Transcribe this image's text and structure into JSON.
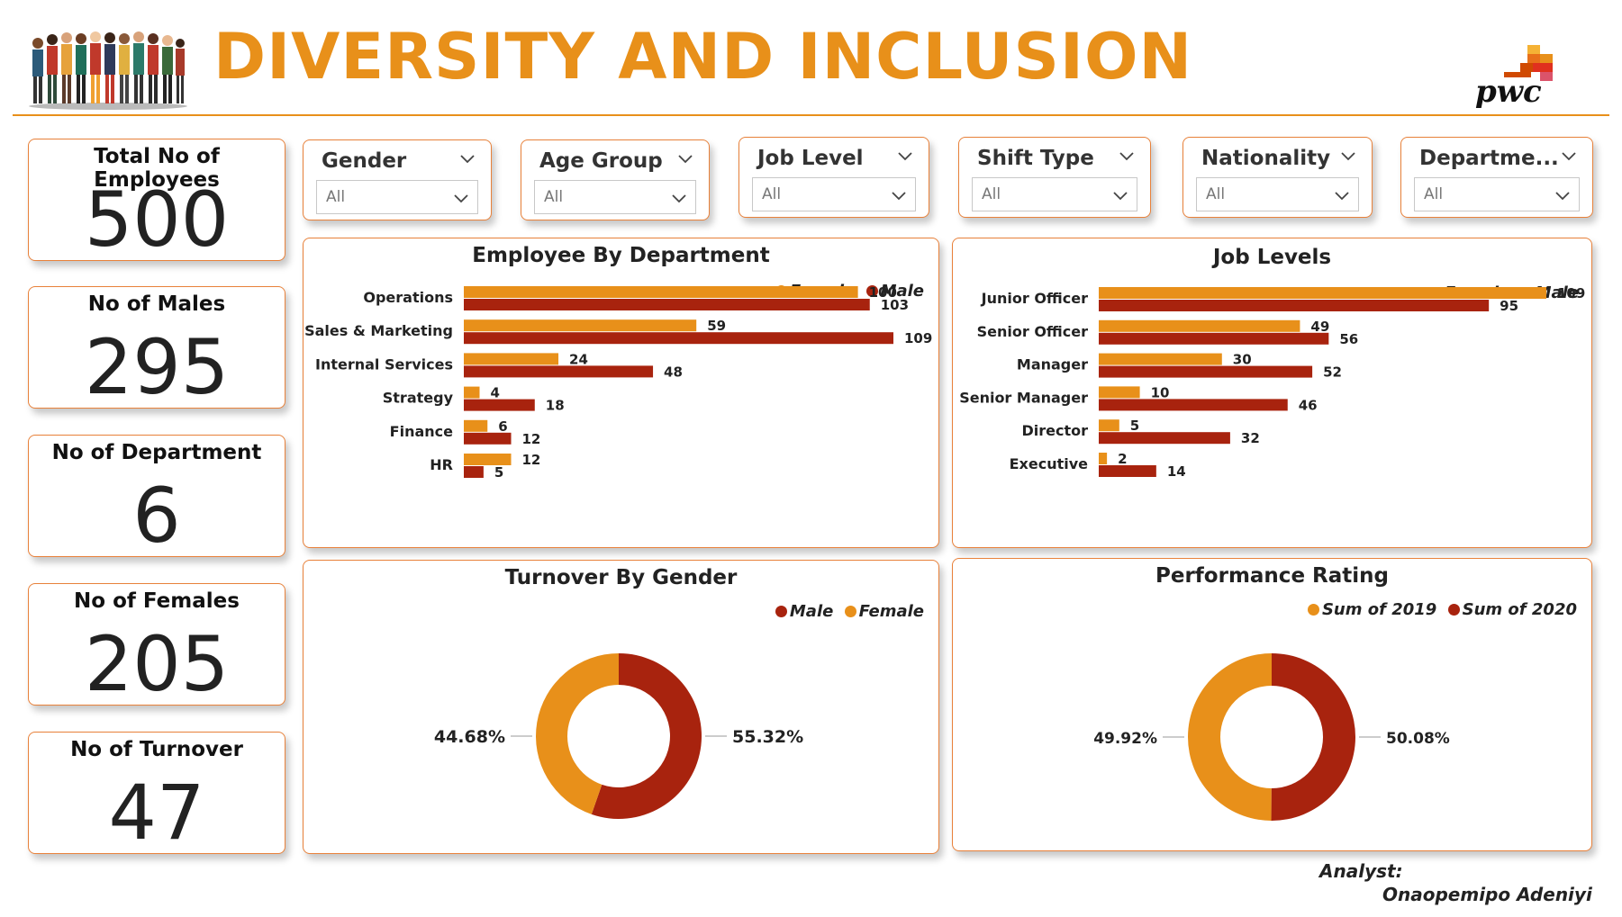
{
  "header": {
    "title": "DIVERSITY AND INCLUSION",
    "logo_text": "pwc"
  },
  "colors": {
    "female": "#E8901A",
    "male": "#A8230E",
    "accent": "#E8813A"
  },
  "kpis": [
    {
      "label": "Total No of Employees",
      "value": "500"
    },
    {
      "label": "No of Males",
      "value": "295"
    },
    {
      "label": "No of Department",
      "value": "6"
    },
    {
      "label": "No of Females",
      "value": "205"
    },
    {
      "label": "No of Turnover",
      "value": "47"
    }
  ],
  "slicers": [
    {
      "label": "Gender",
      "value": "All"
    },
    {
      "label": "Age Group",
      "value": "All"
    },
    {
      "label": "Job Level",
      "value": "All"
    },
    {
      "label": "Shift Type",
      "value": "All"
    },
    {
      "label": "Nationality",
      "value": "All"
    },
    {
      "label": "Departme...",
      "value": "All"
    }
  ],
  "chart_data": [
    {
      "type": "bar",
      "orientation": "horizontal",
      "title": "Employee By Department",
      "legend": {
        "position": "top-right",
        "entries": [
          "Female",
          "Male"
        ]
      },
      "categories": [
        "Operations",
        "Sales & Marketing",
        "Internal Services",
        "Strategy",
        "Finance",
        "HR"
      ],
      "series": [
        {
          "name": "Female",
          "values": [
            100,
            59,
            24,
            4,
            6,
            12
          ]
        },
        {
          "name": "Male",
          "values": [
            103,
            109,
            48,
            18,
            12,
            5
          ]
        }
      ],
      "grid": false
    },
    {
      "type": "bar",
      "orientation": "horizontal",
      "title": "Job Levels",
      "legend": {
        "position": "top-right",
        "entries": [
          "Female",
          "Male"
        ]
      },
      "categories": [
        "Junior Officer",
        "Senior Officer",
        "Manager",
        "Senior Manager",
        "Director",
        "Executive"
      ],
      "series": [
        {
          "name": "Female",
          "values": [
            109,
            49,
            30,
            10,
            5,
            2
          ]
        },
        {
          "name": "Male",
          "values": [
            95,
            56,
            52,
            46,
            32,
            14
          ]
        }
      ],
      "grid": false
    },
    {
      "type": "pie",
      "donut": true,
      "title": "Turnover By Gender",
      "legend": {
        "position": "top-right",
        "entries": [
          "Male",
          "Female"
        ]
      },
      "slices": [
        {
          "name": "Male",
          "value": 55.32,
          "label": "55.32%"
        },
        {
          "name": "Female",
          "value": 44.68,
          "label": "44.68%"
        }
      ]
    },
    {
      "type": "pie",
      "donut": true,
      "title": "Performance Rating",
      "legend": {
        "position": "top-right",
        "entries": [
          "Sum of 2019",
          "Sum of 2020"
        ]
      },
      "slices": [
        {
          "name": "Sum of 2020",
          "value": 50.08,
          "label": "50.08%"
        },
        {
          "name": "Sum of 2019",
          "value": 49.92,
          "label": "49.92%"
        }
      ]
    }
  ],
  "footer": {
    "analyst_label": "Analyst:",
    "analyst_name": "Onaopemipo Adeniyi"
  }
}
